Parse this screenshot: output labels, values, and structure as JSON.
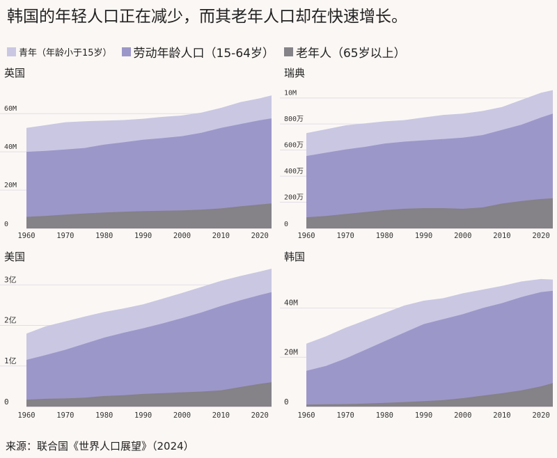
{
  "title": "韩国的年轻人口正在减少，而其老年人口却在快速增长。",
  "legend": [
    {
      "label": "青年（年龄小于15岁）",
      "color": "#c9c7e2"
    },
    {
      "label": "劳动年龄人口（15-64岁）",
      "color": "#9c97c9"
    },
    {
      "label": "老年人（65岁以上）",
      "color": "#858288"
    }
  ],
  "source": "来源：联合国《世界人口展望》（2024）",
  "colors": {
    "background": "#fbf7f4",
    "grid": "#e2dde8",
    "text": "#333333"
  },
  "chart_data": [
    {
      "type": "area",
      "title": "英国",
      "stacked": true,
      "x": [
        1960,
        1965,
        1970,
        1975,
        1980,
        1985,
        1990,
        1995,
        2000,
        2005,
        2010,
        2015,
        2020,
        2023
      ],
      "xticks": [
        "1960",
        "1970",
        "1980",
        "1990",
        "2000",
        "2010",
        "2020"
      ],
      "ylim": [
        0,
        75
      ],
      "yticks": [
        {
          "value": 0,
          "label": "0"
        },
        {
          "value": 20,
          "label": "20M"
        },
        {
          "value": 40,
          "label": "40M"
        },
        {
          "value": 60,
          "label": "60M"
        }
      ],
      "series": [
        {
          "name": "老年人（65岁以上）",
          "values": [
            6,
            6.5,
            7.2,
            7.8,
            8.3,
            8.7,
            9.0,
            9.2,
            9.4,
            9.8,
            10.4,
            11.5,
            12.5,
            13.0
          ]
        },
        {
          "name": "劳动年龄人口（15-64岁）",
          "values": [
            40,
            40.5,
            41.2,
            42,
            43.8,
            45,
            46.3,
            47.2,
            48.2,
            50,
            52.5,
            54.5,
            56.5,
            57.5
          ]
        },
        {
          "name": "青年（年龄小于15岁）",
          "values": [
            52.5,
            54,
            55.5,
            56,
            56.3,
            56.6,
            57.3,
            58.3,
            59,
            60.5,
            63,
            66,
            68,
            69.5
          ]
        }
      ]
    },
    {
      "type": "area",
      "title": "瑞典",
      "stacked": true,
      "x": [
        1960,
        1965,
        1970,
        1975,
        1980,
        1985,
        1990,
        1995,
        2000,
        2005,
        2010,
        2015,
        2020,
        2023
      ],
      "xticks": [
        "1960",
        "1970",
        "1980",
        "1990",
        "2000",
        "2010",
        "2020"
      ],
      "ylim": [
        0,
        1100
      ],
      "yticks": [
        {
          "value": 0,
          "label": "0"
        },
        {
          "value": 200,
          "label": "200万"
        },
        {
          "value": 400,
          "label": "400万"
        },
        {
          "value": 600,
          "label": "600万"
        },
        {
          "value": 800,
          "label": "800万"
        },
        {
          "value": 1000,
          "label": "10M"
        }
      ],
      "series": [
        {
          "name": "老年人（65岁以上）",
          "values": [
            85,
            95,
            110,
            125,
            140,
            150,
            155,
            155,
            150,
            160,
            190,
            210,
            225,
            230
          ]
        },
        {
          "name": "劳动年龄人口（15-64岁）",
          "values": [
            555,
            580,
            605,
            625,
            650,
            665,
            675,
            685,
            695,
            715,
            755,
            795,
            850,
            880
          ]
        },
        {
          "name": "青年（年龄小于15岁）",
          "values": [
            730,
            760,
            790,
            805,
            820,
            830,
            850,
            870,
            880,
            900,
            930,
            985,
            1040,
            1060
          ]
        }
      ]
    },
    {
      "type": "area",
      "title": "美国",
      "stacked": true,
      "x": [
        1960,
        1965,
        1970,
        1975,
        1980,
        1985,
        1990,
        1995,
        2000,
        2005,
        2010,
        2015,
        2020,
        2023
      ],
      "xticks": [
        "1960",
        "1970",
        "1980",
        "1990",
        "2000",
        "2010",
        "2020"
      ],
      "ylim": [
        0,
        3.4
      ],
      "yticks": [
        {
          "value": 0,
          "label": "0"
        },
        {
          "value": 1,
          "label": "1亿"
        },
        {
          "value": 2,
          "label": "2亿"
        },
        {
          "value": 3,
          "label": "3亿"
        }
      ],
      "series": [
        {
          "name": "老年人（65岁以上）",
          "values": [
            0.17,
            0.19,
            0.2,
            0.22,
            0.26,
            0.28,
            0.31,
            0.33,
            0.35,
            0.37,
            0.4,
            0.48,
            0.56,
            0.6
          ]
        },
        {
          "name": "劳动年龄人口（15-64岁）",
          "values": [
            1.15,
            1.27,
            1.4,
            1.55,
            1.7,
            1.82,
            1.93,
            2.05,
            2.18,
            2.32,
            2.48,
            2.62,
            2.75,
            2.82
          ]
        },
        {
          "name": "青年（年龄小于15岁）",
          "values": [
            1.8,
            1.98,
            2.1,
            2.22,
            2.33,
            2.42,
            2.52,
            2.66,
            2.8,
            2.95,
            3.1,
            3.22,
            3.33,
            3.4
          ]
        }
      ]
    },
    {
      "type": "area",
      "title": "韩国",
      "stacked": true,
      "x": [
        1960,
        1965,
        1970,
        1975,
        1980,
        1985,
        1990,
        1995,
        2000,
        2005,
        2010,
        2015,
        2020,
        2023
      ],
      "xticks": [
        "1960",
        "1970",
        "1980",
        "1990",
        "2000",
        "2010",
        "2020"
      ],
      "ylim": [
        0,
        56
      ],
      "yticks": [
        {
          "value": 0,
          "label": "0"
        },
        {
          "value": 20,
          "label": "20M"
        },
        {
          "value": 40,
          "label": "40M"
        }
      ],
      "series": [
        {
          "name": "老年人（65岁以上）",
          "values": [
            0.8,
            0.9,
            1.0,
            1.2,
            1.5,
            1.8,
            2.2,
            2.6,
            3.4,
            4.4,
            5.4,
            6.6,
            8.2,
            9.5
          ]
        },
        {
          "name": "劳动年龄人口（15-64岁）",
          "values": [
            14.5,
            16.5,
            19.5,
            23,
            26.5,
            30,
            33.5,
            35.5,
            37.5,
            40,
            42,
            44.5,
            46.5,
            47
          ]
        },
        {
          "name": "青年（年龄小于15岁）",
          "values": [
            25.5,
            28.5,
            32,
            35,
            38,
            41,
            43,
            44,
            46,
            47.5,
            49,
            50.8,
            51.8,
            51.6
          ]
        }
      ]
    }
  ]
}
